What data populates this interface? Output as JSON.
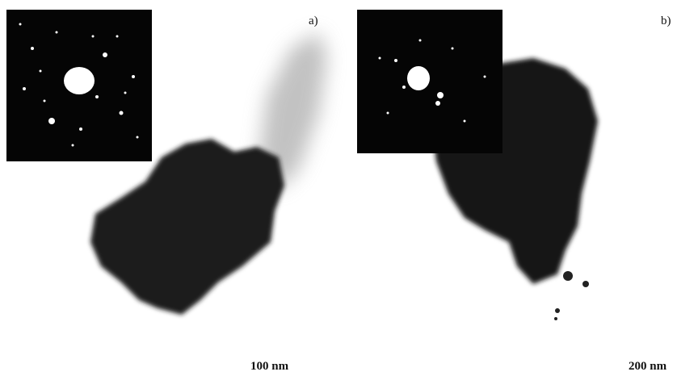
{
  "panels": [
    {
      "label": "a)",
      "scale_bar": "100 nm"
    },
    {
      "label": "b)",
      "scale_bar": "200 nm"
    }
  ]
}
